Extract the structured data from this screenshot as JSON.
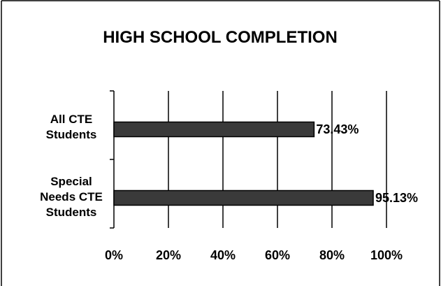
{
  "chart_data": {
    "type": "bar",
    "orientation": "horizontal",
    "title": "HIGH SCHOOL COMPLETION",
    "categories": [
      [
        "All CTE",
        "Students"
      ],
      [
        "Special",
        "Needs CTE",
        "Students"
      ]
    ],
    "values": [
      73.43,
      95.13
    ],
    "data_labels": [
      "73.43%",
      "95.13%"
    ],
    "x_ticks": [
      "0%",
      "20%",
      "40%",
      "60%",
      "80%",
      "100%"
    ],
    "xlim": [
      0,
      100
    ],
    "grid": true,
    "legend": "none",
    "colors": {
      "bar": "#3a3a3a",
      "grid": "#000000",
      "background": "#ffffff"
    }
  }
}
